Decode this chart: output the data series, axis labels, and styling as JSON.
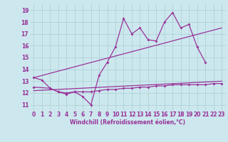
{
  "x": [
    0,
    1,
    2,
    3,
    4,
    5,
    6,
    7,
    8,
    9,
    10,
    11,
    12,
    13,
    14,
    15,
    16,
    17,
    18,
    19,
    20,
    21,
    22,
    23
  ],
  "line1": [
    13.3,
    13.1,
    12.4,
    12.1,
    11.9,
    12.1,
    11.7,
    11.0,
    13.5,
    14.6,
    15.9,
    18.3,
    17.0,
    17.5,
    16.5,
    16.4,
    18.0,
    18.8,
    17.5,
    17.8,
    15.9,
    14.6,
    null,
    null
  ],
  "line2_x": [
    0,
    23
  ],
  "line2_y": [
    13.3,
    17.5
  ],
  "line3_x": [
    0,
    23
  ],
  "line3_y": [
    12.2,
    13.0
  ],
  "line4_x": [
    0,
    2,
    3,
    4,
    5,
    6,
    7,
    8,
    9,
    10,
    11,
    12,
    13,
    14,
    15,
    16,
    17,
    18,
    19,
    20,
    21,
    22,
    23
  ],
  "line4_y": [
    12.5,
    12.4,
    12.1,
    12.0,
    12.1,
    12.1,
    12.1,
    12.2,
    12.3,
    12.3,
    12.4,
    12.4,
    12.5,
    12.5,
    12.6,
    12.6,
    12.7,
    12.7,
    12.7,
    12.7,
    12.7,
    12.8,
    12.8
  ],
  "bg_color": "#cce8ee",
  "line_color": "#993399",
  "grid_color": "#a8cdd0",
  "xlabel": "Windchill (Refroidissement éolien,°C)",
  "ylim": [
    10.5,
    19.5
  ],
  "xlim": [
    -0.5,
    23.5
  ],
  "yticks": [
    11,
    12,
    13,
    14,
    15,
    16,
    17,
    18,
    19
  ],
  "xticks": [
    0,
    1,
    2,
    3,
    4,
    5,
    6,
    7,
    8,
    9,
    10,
    11,
    12,
    13,
    14,
    15,
    16,
    17,
    18,
    19,
    20,
    21,
    22,
    23
  ]
}
